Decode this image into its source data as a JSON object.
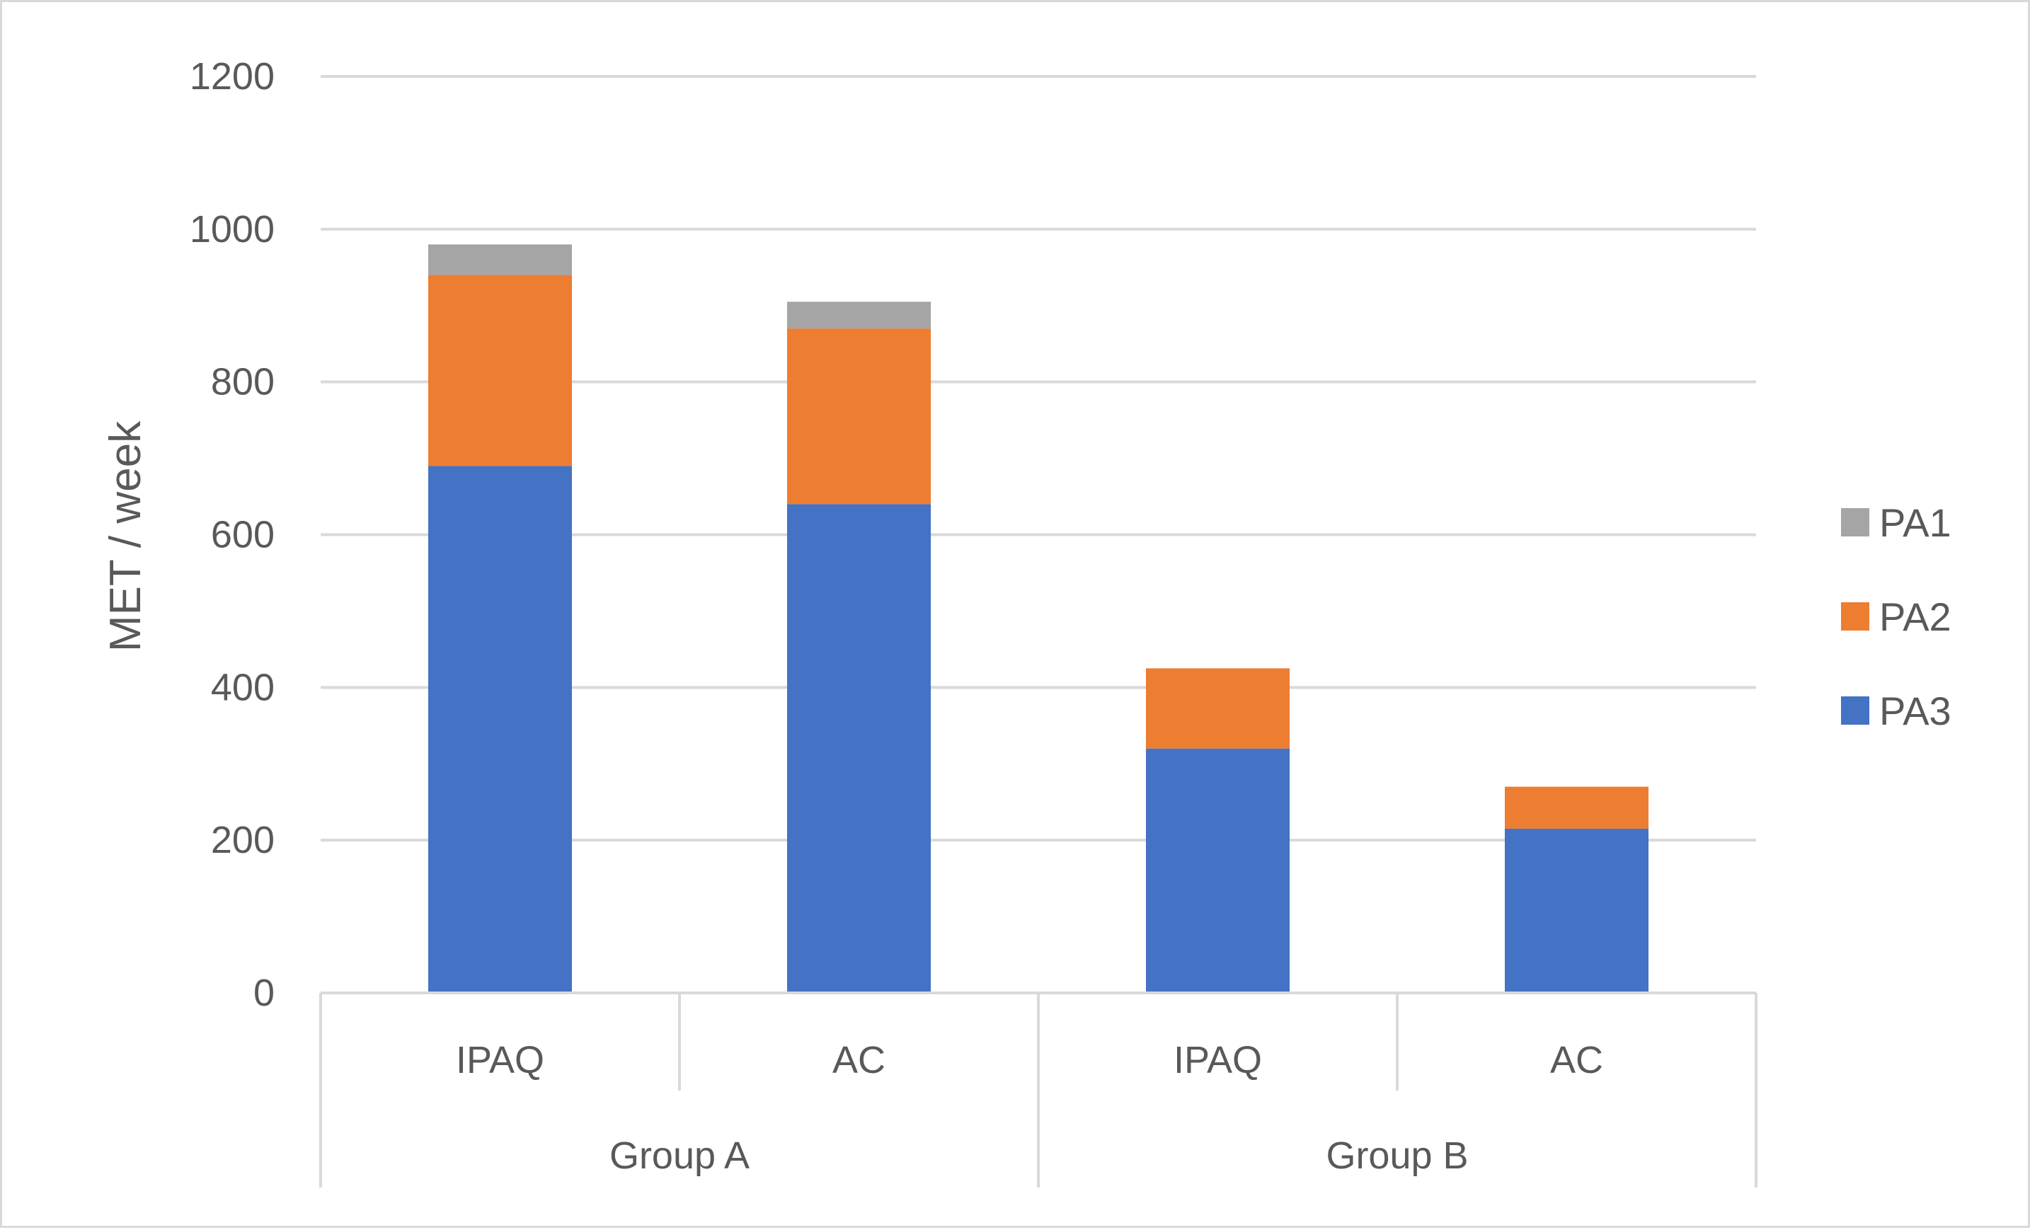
{
  "chart_data": {
    "type": "bar",
    "stacked": true,
    "categories": [
      "IPAQ",
      "AC",
      "IPAQ",
      "AC"
    ],
    "groups": [
      {
        "label": "Group A",
        "categories": [
          "IPAQ",
          "AC"
        ]
      },
      {
        "label": "Group B",
        "categories": [
          "IPAQ",
          "AC"
        ]
      }
    ],
    "series": [
      {
        "name": "PA3",
        "color": "#4472c4",
        "values": [
          690,
          640,
          320,
          215
        ]
      },
      {
        "name": "PA2",
        "color": "#ed7d31",
        "values": [
          250,
          230,
          105,
          55
        ]
      },
      {
        "name": "PA1",
        "color": "#a5a5a5",
        "values": [
          40,
          35,
          0,
          0
        ]
      }
    ],
    "legend_order": [
      "PA1",
      "PA2",
      "PA3"
    ],
    "ylabel": "MET / week",
    "ylim": [
      0,
      1200
    ],
    "yticks": [
      "0",
      "200",
      "400",
      "600",
      "800",
      "1000",
      "1200"
    ],
    "grid": true,
    "legend_position": "right"
  }
}
